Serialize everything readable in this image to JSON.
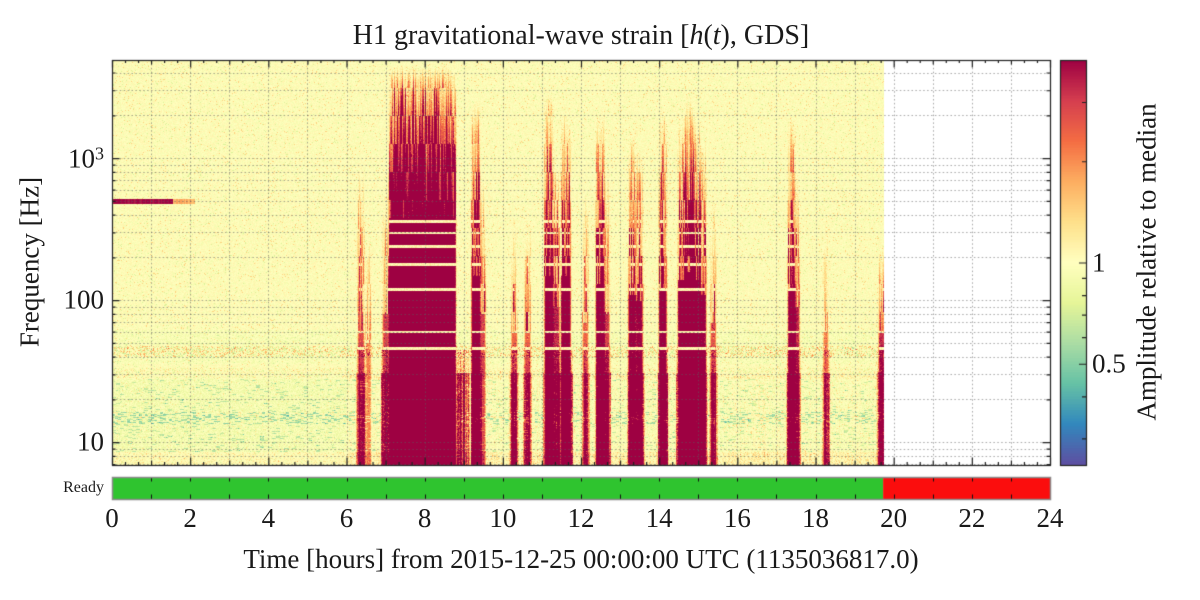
{
  "title": {
    "full": "H1 gravitational-wave strain [h(t), GDS]",
    "parts": [
      {
        "text": "H1 gravitational-wave strain [",
        "italic": false
      },
      {
        "text": "h",
        "italic": true
      },
      {
        "text": "(",
        "italic": false
      },
      {
        "text": "t",
        "italic": true
      },
      {
        "text": "), GDS]",
        "italic": false
      }
    ]
  },
  "axes": {
    "xlabel": "Time [hours] from 2015-12-25 00:00:00 UTC (1135036817.0)",
    "ylabel": "Frequency [Hz]",
    "x_ticks": [
      0,
      2,
      4,
      6,
      8,
      10,
      12,
      14,
      16,
      18,
      20,
      22,
      24
    ],
    "y_ticks": [
      {
        "base": "10",
        "sup": "3",
        "value": 1000
      },
      {
        "base": "100",
        "sup": "",
        "value": 100
      },
      {
        "base": "10",
        "sup": "",
        "value": 10
      }
    ],
    "x_range_hours": [
      0,
      24
    ],
    "y_range_hz": [
      6.9,
      4900
    ],
    "y_scale": "log"
  },
  "colorbar": {
    "label": "Amplitude relative to median",
    "ticks": [
      {
        "label": "1",
        "value": 1
      },
      {
        "label": "0.5",
        "value": 0.5
      }
    ],
    "minor_tick_values": [
      0.3,
      0.4,
      0.6,
      0.7,
      0.8,
      0.9,
      2,
      3
    ],
    "vmin": 0.25,
    "vmax": 4,
    "scale": "log",
    "colormap": "Spectral_r",
    "anchors": [
      "#5e4fa2",
      "#3288bd",
      "#66c2a5",
      "#abdda4",
      "#e6f598",
      "#ffffbf",
      "#fee08b",
      "#fdae61",
      "#f46d43",
      "#d53e4f",
      "#9e0142"
    ]
  },
  "state_bar": {
    "label": "Ready",
    "segments": [
      {
        "start_hour": 0,
        "end_hour": 19.73,
        "color": "#2fc42f"
      },
      {
        "start_hour": 19.73,
        "end_hour": 24,
        "color": "#fb0d0d"
      }
    ],
    "border_color": "#8a8a8a"
  },
  "chart_data": {
    "type": "heatmap",
    "subtype": "spectrogram",
    "title": "H1 gravitational-wave strain [h(t), GDS]",
    "xlabel": "Time [hours] from 2015-12-25 00:00:00 UTC (1135036817.0)",
    "ylabel": "Frequency [Hz]",
    "colorbar_label": "Amplitude relative to median",
    "x_range_hours": [
      0,
      24
    ],
    "y_range_hz": [
      6.9,
      4900
    ],
    "y_scale": "log",
    "color_range": [
      0.25,
      4
    ],
    "color_scale": "log",
    "background_amplitude": 1.0,
    "data_end_hour": 19.73,
    "grid": "dotted, hourly vertical + log-decade minor horizontal",
    "observing_segments": [
      {
        "label": "Ready",
        "start_hour": 0,
        "end_hour": 19.73,
        "color": "#2fc42f"
      },
      {
        "label": "",
        "start_hour": 19.73,
        "end_hour": 24,
        "color": "#fb0d0d"
      }
    ],
    "spectral_line": {
      "frequency_hz": 500,
      "start_hour": 0,
      "end_hour": 1.55,
      "fade_end_hour": 2.1,
      "amplitude": 4
    },
    "harmonic_pale_lines_hz": [
      46,
      60,
      120,
      180,
      240,
      300,
      360
    ],
    "noise_bands": [
      {
        "f_low": 40,
        "f_high": 48,
        "kind": "mottled orange/teal"
      },
      {
        "f_low": 28.5,
        "f_high": 33.5,
        "kind": "mottled weak"
      },
      {
        "f_low": 49,
        "f_high": 62,
        "kind": "pale"
      },
      {
        "f_low": 36,
        "f_high": 40,
        "kind": "pale"
      },
      {
        "f_low": 9,
        "f_high": 28,
        "kind": "green quiet"
      },
      {
        "f_low": 13.5,
        "f_high": 16.5,
        "kind": "teal dashes"
      },
      {
        "f_low": 7,
        "f_high": 8.6,
        "kind": "orange speckle"
      }
    ],
    "glitch_events": [
      {
        "t": 6.36,
        "w": 0.045,
        "f_top": 1000,
        "s": 2.0,
        "knee": 60
      },
      {
        "t": 6.55,
        "w": 0.03,
        "f_top": 350,
        "s": 1.2,
        "knee": 50
      },
      {
        "t": 7.05,
        "w": 0.1,
        "f_top": 600,
        "s": 2.0,
        "knee": 80
      },
      {
        "t": 7.93,
        "w": 0.8,
        "f_top": 4600,
        "s": 14,
        "knee": 380
      },
      {
        "t": 9.3,
        "w": 0.07,
        "f_top": 2600,
        "s": 6,
        "knee": 150
      },
      {
        "t": 9.47,
        "w": 0.035,
        "f_top": 800,
        "s": 2.0,
        "knee": 80
      },
      {
        "t": 10.28,
        "w": 0.04,
        "f_top": 420,
        "s": 1.6,
        "knee": 60
      },
      {
        "t": 10.62,
        "w": 0.04,
        "f_top": 420,
        "s": 1.6,
        "knee": 60
      },
      {
        "t": 11.17,
        "w": 0.07,
        "f_top": 3100,
        "s": 6,
        "knee": 150
      },
      {
        "t": 11.35,
        "w": 0.05,
        "f_top": 1100,
        "s": 2.5,
        "knee": 90
      },
      {
        "t": 11.6,
        "w": 0.08,
        "f_top": 2400,
        "s": 6,
        "knee": 150
      },
      {
        "t": 12.1,
        "w": 0.035,
        "f_top": 600,
        "s": 1.6,
        "knee": 70
      },
      {
        "t": 12.48,
        "w": 0.07,
        "f_top": 2400,
        "s": 5,
        "knee": 130
      },
      {
        "t": 12.64,
        "w": 0.04,
        "f_top": 900,
        "s": 2.2,
        "knee": 80
      },
      {
        "t": 13.3,
        "w": 0.06,
        "f_top": 1700,
        "s": 4.5,
        "knee": 110
      },
      {
        "t": 13.48,
        "w": 0.05,
        "f_top": 1300,
        "s": 3.5,
        "knee": 100
      },
      {
        "t": 14.08,
        "w": 0.06,
        "f_top": 2500,
        "s": 4.5,
        "knee": 120
      },
      {
        "t": 14.58,
        "w": 0.07,
        "f_top": 2100,
        "s": 5.5,
        "knee": 140
      },
      {
        "t": 14.76,
        "w": 0.08,
        "f_top": 3000,
        "s": 6,
        "knee": 160
      },
      {
        "t": 14.94,
        "w": 0.07,
        "f_top": 2000,
        "s": 5.5,
        "knee": 140
      },
      {
        "t": 15.1,
        "w": 0.05,
        "f_top": 1400,
        "s": 4,
        "knee": 110
      },
      {
        "t": 15.37,
        "w": 0.035,
        "f_top": 600,
        "s": 1.8,
        "knee": 70
      },
      {
        "t": 17.38,
        "w": 0.055,
        "f_top": 2200,
        "s": 5,
        "knee": 120
      },
      {
        "t": 17.5,
        "w": 0.04,
        "f_top": 1000,
        "s": 2.5,
        "knee": 90
      },
      {
        "t": 18.25,
        "w": 0.03,
        "f_top": 400,
        "s": 1.2,
        "knee": 60
      },
      {
        "t": 19.68,
        "w": 0.04,
        "f_top": 260,
        "s": 2.5,
        "knee": 60
      }
    ],
    "loud_low_frequency_intervals_hours": [
      [
        6.28,
        6.45
      ],
      [
        6.9,
        9.1
      ],
      [
        9.2,
        9.42
      ],
      [
        10.2,
        10.35
      ],
      [
        10.55,
        10.7
      ],
      [
        11.05,
        11.75
      ],
      [
        12.05,
        12.18
      ],
      [
        12.4,
        12.72
      ],
      [
        13.2,
        13.58
      ],
      [
        13.98,
        14.2
      ],
      [
        14.45,
        15.2
      ],
      [
        15.3,
        15.45
      ],
      [
        17.28,
        17.58
      ],
      [
        18.2,
        18.32
      ],
      [
        19.58,
        19.73
      ]
    ]
  }
}
